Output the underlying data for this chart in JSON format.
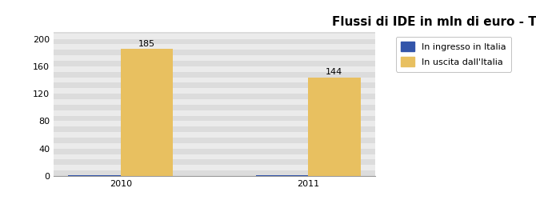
{
  "title": "Flussi di IDE in mln di euro - TUNISIA",
  "years": [
    "2010",
    "2011"
  ],
  "ingresso_values": [
    1,
    1
  ],
  "uscita_values": [
    185,
    144
  ],
  "ingresso_color": "#3355AA",
  "uscita_color": "#E8C060",
  "bar_width": 0.28,
  "ylim": [
    0,
    210
  ],
  "yticks": [
    0,
    40,
    80,
    120,
    160,
    200
  ],
  "legend_ingresso": "In ingresso in Italia",
  "legend_uscita": "In uscita dall'Italia",
  "plot_bg": "#E8E8E8",
  "title_fontsize": 11,
  "label_fontsize": 8,
  "tick_fontsize": 8,
  "legend_fontsize": 8,
  "stripe_color1": "#DCDCDC",
  "stripe_color2": "#EBEBEB"
}
